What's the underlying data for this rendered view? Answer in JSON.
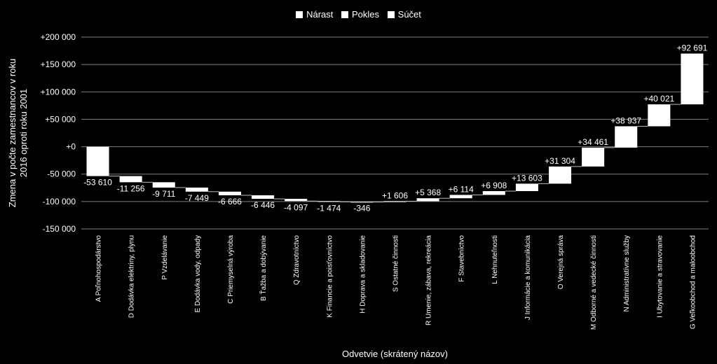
{
  "chart_data": {
    "type": "bar",
    "subtype": "waterfall",
    "title": "",
    "legend": [
      "Nárast",
      "Pokles",
      "Súčet"
    ],
    "legend_position": "top-center",
    "ylabel_lines": [
      "Zmena v počte zamestnancov v roku",
      "2016 oproti roku 2001"
    ],
    "xlabel": "Odvetvie (skrátený názov)",
    "ylim": [
      -150000,
      200000
    ],
    "yticks": [
      200000,
      150000,
      100000,
      50000,
      0,
      -50000,
      -100000,
      -150000
    ],
    "ytick_labels": [
      "+200 000",
      "+150 000",
      "+100 000",
      "+50 000",
      "+0",
      "-50 000",
      "-100 000",
      "-150 000"
    ],
    "grid": true,
    "categories": [
      "A Poľnohospodárstvo",
      "D Dodávka elektriny, plynu",
      "P Vzdelávanie",
      "E Dodávka vody, odpady",
      "C Priemyselná výroba",
      "B Ťažba a dobývanie",
      "Q Zdravotníctvo",
      "K Financie a poisťovníctvo",
      "H Doprava a skladovanie",
      "S Ostatné činnosti",
      "R Umenie, zábava, rekreácia",
      "F Stavebníctvo",
      "L Nehnuteľnosti",
      "J Informácie a komunikácia",
      "O Verejná správa",
      "M Odborné a vedecké činnosti",
      "N Administratívne služby",
      "I Ubytovanie a stravovanie",
      "G Veľkoobchod a maloobchod"
    ],
    "values": [
      -53610,
      -11256,
      -9711,
      -7449,
      -6666,
      -6446,
      -4097,
      -1474,
      -346,
      1606,
      5368,
      6114,
      6908,
      13603,
      31304,
      34461,
      38937,
      40021,
      92691
    ],
    "value_labels": [
      "-53 610",
      "-11 256",
      "-9 711",
      "-7 449",
      "-6 666",
      "-6 446",
      "-4 097",
      "-1 474",
      "-346",
      "+1 606",
      "+5 368",
      "+6 114",
      "+6 908",
      "+13 603",
      "+31 304",
      "+34 461",
      "+38 937",
      "+40 021",
      "+92 691"
    ],
    "colors": {
      "background": "#000000",
      "bar": "#ffffff",
      "grid": "#7f7f7f",
      "connector": "#bfbfbf"
    }
  }
}
